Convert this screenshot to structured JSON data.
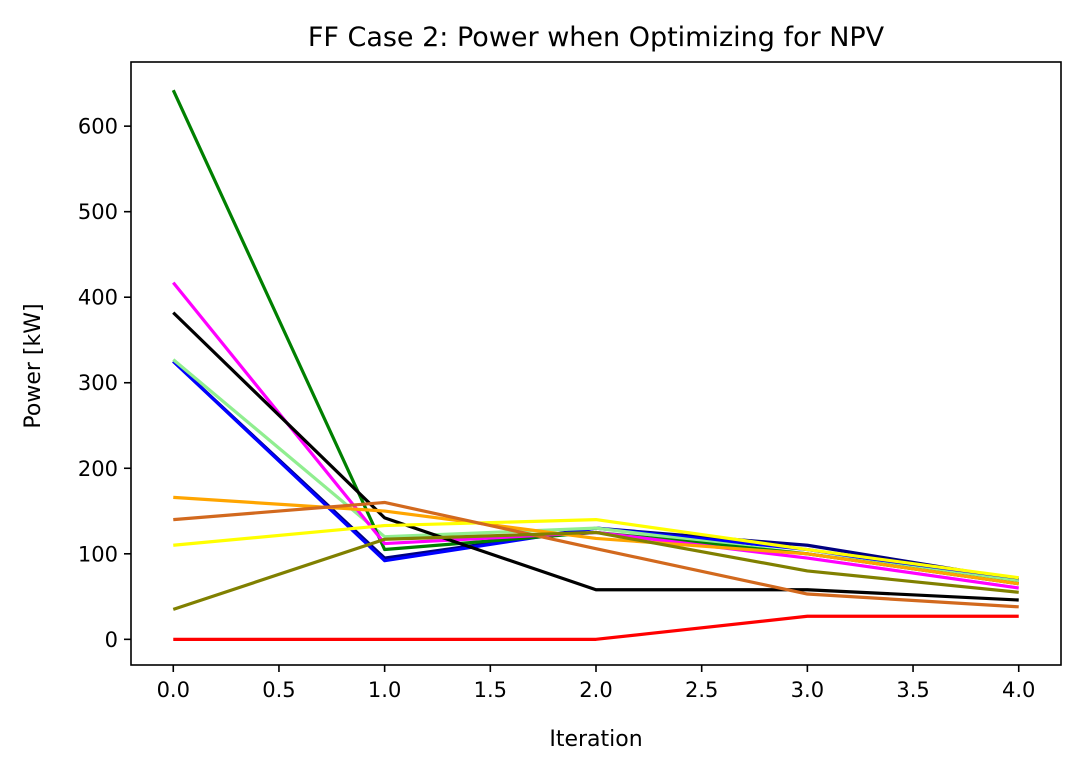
{
  "chart_data": {
    "type": "line",
    "title": "FF Case 2: Power when Optimizing for NPV",
    "xlabel": "Iteration",
    "ylabel": "Power [kW]",
    "x": [
      0,
      1,
      2,
      3,
      4
    ],
    "xlim": [
      -0.2,
      4.2
    ],
    "ylim": [
      -30,
      675
    ],
    "xticks": [
      0.0,
      0.5,
      1.0,
      1.5,
      2.0,
      2.5,
      3.0,
      3.5,
      4.0
    ],
    "xtick_labels": [
      "0.0",
      "0.5",
      "1.0",
      "1.5",
      "2.0",
      "2.5",
      "3.0",
      "3.5",
      "4.0"
    ],
    "yticks": [
      0,
      100,
      200,
      300,
      400,
      500,
      600
    ],
    "ytick_labels": [
      "0",
      "100",
      "200",
      "300",
      "400",
      "500",
      "600"
    ],
    "grid": false,
    "legend": "none",
    "series": [
      {
        "color": "#000080",
        "values": [
          325,
          95,
          130,
          110,
          70
        ]
      },
      {
        "color": "#0000ff",
        "values": [
          325,
          92,
          130,
          105,
          68
        ]
      },
      {
        "color": "#90ee90",
        "values": [
          327,
          120,
          130,
          100,
          68
        ]
      },
      {
        "color": "#008000",
        "values": [
          642,
          105,
          125,
          100,
          65
        ]
      },
      {
        "color": "#ff00ff",
        "values": [
          417,
          112,
          125,
          95,
          60
        ]
      },
      {
        "color": "#000000",
        "values": [
          382,
          142,
          58,
          58,
          46
        ]
      },
      {
        "color": "#ffa500",
        "values": [
          166,
          150,
          118,
          100,
          65
        ]
      },
      {
        "color": "#ffff00",
        "values": [
          110,
          133,
          140,
          105,
          72
        ]
      },
      {
        "color": "#d2691e",
        "values": [
          140,
          160,
          106,
          53,
          38
        ]
      },
      {
        "color": "#808000",
        "values": [
          35,
          117,
          125,
          80,
          55
        ]
      },
      {
        "color": "#ff0000",
        "values": [
          0,
          0,
          0,
          27,
          27
        ]
      }
    ]
  }
}
